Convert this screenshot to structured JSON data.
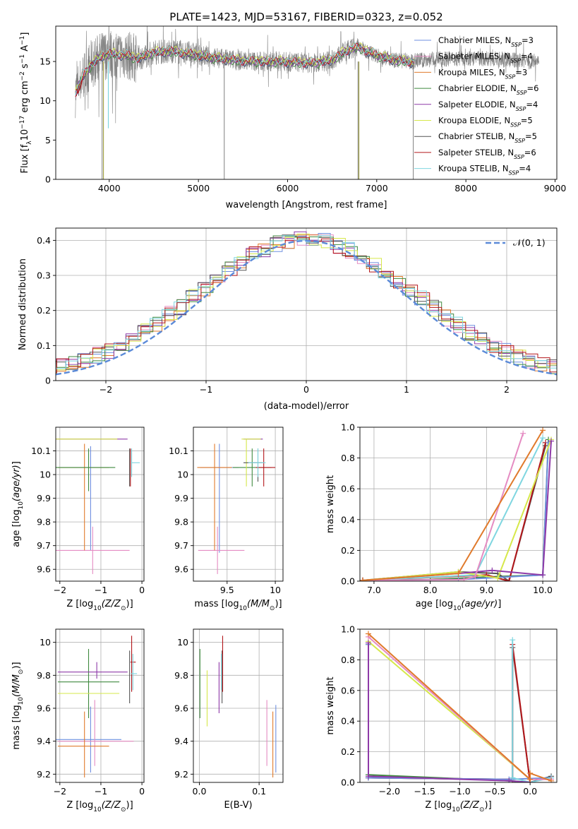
{
  "title": "PLATE=1423, MJD=53167, FIBERID=0323, z=0.052",
  "colors": {
    "Chabrier MILES": "#6f8fe0",
    "Salpeter MILES": "#e58bc2",
    "Kroupa MILES": "#e07a2b",
    "Chabrier ELODIE": "#3f8a3f",
    "Salpeter ELODIE": "#8e3aa8",
    "Kroupa ELODIE": "#d6e84a",
    "Chabrier STELIB": "#555555",
    "Salpeter STELIB": "#b3161a",
    "Kroupa STELIB": "#7fd6e0",
    "data_gray": "#808080",
    "normal_curve": "#5b8ad8"
  },
  "chart_data": [
    {
      "type": "line",
      "panel": "spectrum",
      "xlabel": "wavelength [Angstrom, rest frame]",
      "ylabel": "Flux [f_λ 10^-17 erg cm^-2 s^-1 A^-1]",
      "xlim": [
        3400,
        9020
      ],
      "ylim": [
        0,
        19.5
      ],
      "xticks": [
        4000,
        5000,
        6000,
        7000,
        8000,
        9000
      ],
      "yticks": [
        0,
        5,
        10,
        15
      ],
      "legend_position": "top-right",
      "legend": [
        {
          "name": "Chabrier MILES",
          "sub": "SSP",
          "n": "=3"
        },
        {
          "name": "Salpeter MILES",
          "sub": "SSP",
          "n": "=4"
        },
        {
          "name": "Kroupa MILES",
          "sub": "SSP",
          "n": "=3"
        },
        {
          "name": "Chabrier ELODIE",
          "sub": "SSP",
          "n": "=6"
        },
        {
          "name": "Salpeter ELODIE",
          "sub": "SSP",
          "n": "=4"
        },
        {
          "name": "Kroupa ELODIE",
          "sub": "SSP",
          "n": "=5"
        },
        {
          "name": "Chabrier STELIB",
          "sub": "SSP",
          "n": "=5"
        },
        {
          "name": "Salpeter STELIB",
          "sub": "SSP",
          "n": "=6"
        },
        {
          "name": "Kroupa STELIB",
          "sub": "SSP",
          "n": "=4"
        }
      ],
      "continuum": {
        "x": [
          3620,
          3700,
          3800,
          3900,
          4000,
          4100,
          4200,
          4300,
          4400,
          4500,
          4700,
          4900,
          5100,
          5300,
          5500,
          5700,
          5900,
          6100,
          6300,
          6500,
          6600,
          6700,
          6800,
          7000,
          7200,
          7420
        ],
        "y": [
          11.0,
          13.0,
          14.6,
          15.6,
          16.0,
          15.9,
          15.8,
          15.4,
          15.7,
          16.2,
          16.3,
          16.0,
          15.6,
          15.3,
          15.1,
          15.0,
          15.0,
          14.9,
          14.8,
          15.2,
          16.0,
          16.6,
          16.8,
          15.8,
          15.2,
          14.9
        ]
      },
      "dips_gray": [
        {
          "x": 3920,
          "y": 0
        },
        {
          "x": 5290,
          "y": 0
        },
        {
          "x": 6790,
          "y": 0
        },
        {
          "x": 7410,
          "y": 0
        }
      ],
      "dips_olive": [
        {
          "x": 3935,
          "y": 0
        },
        {
          "x": 6800,
          "y": 0
        }
      ],
      "dip_cyan": {
        "x": 3990,
        "y": 6.5
      },
      "red_tail": {
        "x": [
          3630,
          3650,
          3680,
          3700
        ],
        "y": [
          11.5,
          11.0,
          11.8,
          12.8
        ]
      }
    },
    {
      "type": "line",
      "panel": "residual-histogram",
      "xlabel": "(data-model)/error",
      "ylabel": "Normed distribution",
      "xlim": [
        -2.5,
        2.5
      ],
      "ylim": [
        0,
        0.435
      ],
      "xticks": [
        -2,
        -1,
        0,
        1,
        2
      ],
      "yticks": [
        0.0,
        0.1,
        0.2,
        0.3,
        0.4
      ],
      "grid": true,
      "legend": "𝒩(0, 1)",
      "legend_position": "top-right",
      "normal_curve": {
        "mean": 0,
        "sigma": 1
      }
    },
    {
      "type": "scatter",
      "panel": "age-vs-Z",
      "xlabel": "Z [log10(Z/Z☉)]",
      "ylabel": "age [log10(age/yr)]",
      "xlim": [
        -2.1,
        0.05
      ],
      "ylim": [
        9.55,
        10.2
      ],
      "xticks": [
        -2,
        -1,
        0
      ],
      "yticks": [
        9.6,
        9.7,
        9.8,
        9.9,
        10.0,
        10.1
      ],
      "grid": true,
      "points": [
        {
          "model": "Chabrier MILES",
          "x": -1.25,
          "y": 10.04,
          "xerr": [
            0,
            0
          ],
          "yerr": [
            0.36,
            0.08
          ]
        },
        {
          "model": "Salpeter MILES",
          "x": -1.2,
          "y": 9.68,
          "xerr": [
            0.9,
            0.9
          ],
          "yerr": [
            0.1,
            0.1
          ]
        },
        {
          "model": "Kroupa MILES",
          "x": -1.4,
          "y": 10.03,
          "xerr": [
            0.65,
            0.6
          ],
          "yerr": [
            0.35,
            0.1
          ]
        },
        {
          "model": "Chabrier ELODIE",
          "x": -1.3,
          "y": 10.03,
          "xerr": [
            0.8,
            0.65
          ],
          "yerr": [
            0.1,
            0.08
          ]
        },
        {
          "model": "Salpeter ELODIE",
          "x": -1.1,
          "y": 10.15,
          "xerr": [
            1.0,
            0.75
          ],
          "yerr": [
            0,
            0
          ]
        },
        {
          "model": "Kroupa ELODIE",
          "x": -1.3,
          "y": 10.15,
          "xerr": [
            0.8,
            0.7
          ],
          "yerr": [
            0,
            0
          ]
        },
        {
          "model": "Chabrier STELIB",
          "x": -0.3,
          "y": 10.03,
          "xerr": [
            0,
            0
          ],
          "yerr": [
            0.08,
            0.08
          ]
        },
        {
          "model": "Salpeter STELIB",
          "x": -0.28,
          "y": 10.03,
          "xerr": [
            0,
            0
          ],
          "yerr": [
            0.08,
            0.08
          ]
        },
        {
          "model": "Kroupa STELIB",
          "x": -0.25,
          "y": 10.05,
          "xerr": [
            0,
            0.2
          ],
          "yerr": [
            0.06,
            0.06
          ]
        }
      ]
    },
    {
      "type": "scatter",
      "panel": "age-vs-mass",
      "xlabel": "mass [log10(M/M☉)]",
      "ylabel": "",
      "xlim": [
        9.15,
        10.08
      ],
      "ylim": [
        9.55,
        10.2
      ],
      "xticks": [
        9.5,
        10.0
      ],
      "yticks": [
        9.6,
        9.7,
        9.8,
        9.9,
        10.0,
        10.1
      ],
      "grid": true,
      "points": [
        {
          "model": "Chabrier MILES",
          "x": 9.42,
          "y": 10.03,
          "xerr": [
            0.2,
            0.2
          ],
          "yerr": [
            0.36,
            0.1
          ]
        },
        {
          "model": "Salpeter MILES",
          "x": 9.4,
          "y": 9.68,
          "xerr": [
            0.2,
            0.28
          ],
          "yerr": [
            0.1,
            0.1
          ]
        },
        {
          "model": "Kroupa MILES",
          "x": 9.37,
          "y": 10.03,
          "xerr": [
            0.18,
            0.18
          ],
          "yerr": [
            0.35,
            0.1
          ]
        },
        {
          "model": "Chabrier ELODIE",
          "x": 9.76,
          "y": 10.03,
          "xerr": [
            0.2,
            0.2
          ],
          "yerr": [
            0.08,
            0.08
          ]
        },
        {
          "model": "Salpeter ELODIE",
          "x": 9.82,
          "y": 10.15,
          "xerr": [
            0.15,
            0.05
          ],
          "yerr": [
            0,
            0
          ]
        },
        {
          "model": "Kroupa ELODIE",
          "x": 9.7,
          "y": 10.15,
          "xerr": [
            0.05,
            0.15
          ],
          "yerr": [
            0.2,
            0
          ]
        },
        {
          "model": "Chabrier STELIB",
          "x": 9.82,
          "y": 10.05,
          "xerr": [
            0.15,
            0.05
          ],
          "yerr": [
            0.08,
            0.06
          ]
        },
        {
          "model": "Salpeter STELIB",
          "x": 9.88,
          "y": 10.03,
          "xerr": [
            0.08,
            0.12
          ],
          "yerr": [
            0.08,
            0.08
          ]
        },
        {
          "model": "Kroupa STELIB",
          "x": 9.82,
          "y": 10.05,
          "xerr": [
            0.1,
            0.08
          ],
          "yerr": [
            0.06,
            0.06
          ]
        }
      ]
    },
    {
      "type": "line",
      "panel": "mass-weight-vs-age",
      "xlabel": "age [log10(age/yr)]",
      "ylabel": "mass weight",
      "xlim": [
        6.75,
        10.25
      ],
      "ylim": [
        0,
        1.0
      ],
      "xticks": [
        7,
        8,
        9,
        10
      ],
      "yticks": [
        0.0,
        0.2,
        0.4,
        0.6,
        0.8,
        1.0
      ],
      "grid": true,
      "series": [
        {
          "model": "Chabrier MILES",
          "x": [
            6.8,
            8.5,
            9.0,
            10.0,
            10.1
          ],
          "y": [
            0.005,
            0.01,
            0.02,
            0.04,
            0.9
          ]
        },
        {
          "model": "Salpeter MILES",
          "x": [
            6.8,
            8.6,
            8.8,
            9.65
          ],
          "y": [
            0.005,
            0.01,
            0.03,
            0.96
          ]
        },
        {
          "model": "Kroupa MILES",
          "x": [
            6.8,
            8.5,
            10.0
          ],
          "y": [
            0.005,
            0.05,
            0.98
          ]
        },
        {
          "model": "Chabrier ELODIE",
          "x": [
            6.8,
            8.0,
            9.2,
            10.0,
            10.1
          ],
          "y": [
            0.005,
            0.01,
            0.03,
            0.04,
            0.92
          ]
        },
        {
          "model": "Salpeter ELODIE",
          "x": [
            6.8,
            8.5,
            9.1,
            10.0,
            10.15
          ],
          "y": [
            0.005,
            0.05,
            0.07,
            0.04,
            0.91
          ]
        },
        {
          "model": "Kroupa ELODIE",
          "x": [
            6.8,
            8.5,
            9.2,
            10.15
          ],
          "y": [
            0.005,
            0.06,
            0.02,
            0.92
          ]
        },
        {
          "model": "Chabrier STELIB",
          "x": [
            6.8,
            8.5,
            9.2,
            9.4,
            10.05
          ],
          "y": [
            0.005,
            0.06,
            0.05,
            0.0,
            0.88
          ]
        },
        {
          "model": "Salpeter STELIB",
          "x": [
            6.8,
            9.0,
            9.4,
            10.05
          ],
          "y": [
            0.005,
            0.04,
            0.0,
            0.9
          ]
        },
        {
          "model": "Kroupa STELIB",
          "x": [
            6.8,
            8.8,
            10.0
          ],
          "y": [
            0.005,
            0.04,
            0.93
          ]
        }
      ]
    },
    {
      "type": "scatter",
      "panel": "mass-vs-Z",
      "xlabel": "Z [log10(Z/Z☉)]",
      "ylabel": "mass [log10(M/M☉)]",
      "xlim": [
        -2.1,
        0.05
      ],
      "ylim": [
        9.15,
        10.08
      ],
      "xticks": [
        -2,
        -1,
        0
      ],
      "yticks": [
        9.2,
        9.4,
        9.6,
        9.8,
        10.0
      ],
      "grid": true,
      "points": [
        {
          "model": "Chabrier MILES",
          "x": -1.25,
          "y": 9.41,
          "xerr": [
            0.85,
            0.75
          ],
          "yerr": [
            0.2,
            0.2
          ]
        },
        {
          "model": "Salpeter MILES",
          "x": -1.15,
          "y": 9.4,
          "xerr": [
            0.9,
            0.95
          ],
          "yerr": [
            0.15,
            0.25
          ]
        },
        {
          "model": "Kroupa MILES",
          "x": -1.4,
          "y": 9.37,
          "xerr": [
            0.65,
            0.6
          ],
          "yerr": [
            0.19,
            0.21
          ]
        },
        {
          "model": "Chabrier ELODIE",
          "x": -1.3,
          "y": 9.76,
          "xerr": [
            0.75,
            0.75
          ],
          "yerr": [
            0.22,
            0.2
          ]
        },
        {
          "model": "Salpeter ELODIE",
          "x": -1.1,
          "y": 9.82,
          "xerr": [
            0.95,
            0.75
          ],
          "yerr": [
            0.04,
            0.06
          ]
        },
        {
          "model": "Kroupa ELODIE",
          "x": -1.3,
          "y": 9.69,
          "xerr": [
            0.75,
            0.75
          ],
          "yerr": [
            0,
            0
          ]
        },
        {
          "model": "Chabrier STELIB",
          "x": -0.3,
          "y": 9.82,
          "xerr": [
            0,
            0
          ],
          "yerr": [
            0.19,
            0.13
          ]
        },
        {
          "model": "Salpeter STELIB",
          "x": -0.25,
          "y": 9.88,
          "xerr": [
            0.03,
            0.1
          ],
          "yerr": [
            0.18,
            0.16
          ]
        },
        {
          "model": "Kroupa STELIB",
          "x": -0.22,
          "y": 9.81,
          "xerr": [
            0.05,
            0.1
          ],
          "yerr": [
            0.1,
            0.12
          ]
        }
      ]
    },
    {
      "type": "scatter",
      "panel": "mass-vs-EBV",
      "xlabel": "E(B-V)",
      "ylabel": "",
      "xlim": [
        -0.01,
        0.14
      ],
      "ylim": [
        9.15,
        10.08
      ],
      "xticks": [
        0.0,
        0.1
      ],
      "yticks": [
        9.2,
        9.4,
        9.6,
        9.8,
        10.0
      ],
      "grid": true,
      "points": [
        {
          "model": "Chabrier MILES",
          "x": 0.128,
          "y": 9.41,
          "xerr": [
            0,
            0
          ],
          "yerr": [
            0.2,
            0.21
          ]
        },
        {
          "model": "Salpeter MILES",
          "x": 0.113,
          "y": 9.45,
          "xerr": [
            0,
            0
          ],
          "yerr": [
            0.2,
            0.2
          ]
        },
        {
          "model": "Kroupa MILES",
          "x": 0.123,
          "y": 9.37,
          "xerr": [
            0,
            0
          ],
          "yerr": [
            0.19,
            0.21
          ]
        },
        {
          "model": "Chabrier ELODIE",
          "x": 0.001,
          "y": 9.76,
          "xerr": [
            0,
            0
          ],
          "yerr": [
            0.22,
            0.2
          ]
        },
        {
          "model": "Salpeter ELODIE",
          "x": 0.033,
          "y": 9.82,
          "xerr": [
            0,
            0
          ],
          "yerr": [
            0.25,
            0.06
          ]
        },
        {
          "model": "Kroupa ELODIE",
          "x": 0.013,
          "y": 9.69,
          "xerr": [
            0,
            0
          ],
          "yerr": [
            0.2,
            0.14
          ]
        },
        {
          "model": "Chabrier STELIB",
          "x": 0.038,
          "y": 9.82,
          "xerr": [
            0,
            0
          ],
          "yerr": [
            0.19,
            0.13
          ]
        },
        {
          "model": "Salpeter STELIB",
          "x": 0.039,
          "y": 9.88,
          "xerr": [
            0,
            0
          ],
          "yerr": [
            0.18,
            0.16
          ]
        },
        {
          "model": "Kroupa STELIB",
          "x": 0.037,
          "y": 9.81,
          "xerr": [
            0,
            0
          ],
          "yerr": [
            0.1,
            0.12
          ]
        }
      ]
    },
    {
      "type": "line",
      "panel": "mass-weight-vs-Z",
      "xlabel": "Z [log10(Z/Z☉)]",
      "ylabel": "mass weight",
      "xlim": [
        -2.42,
        0.38
      ],
      "ylim": [
        0,
        1.0
      ],
      "xticks": [
        -2.0,
        -1.5,
        -1.0,
        -0.5,
        0.0
      ],
      "yticks": [
        0.0,
        0.2,
        0.4,
        0.6,
        0.8,
        1.0
      ],
      "grid": true,
      "series": [
        {
          "model": "Chabrier MILES",
          "x": [
            -2.3,
            -2.3,
            -0.3,
            0.3
          ],
          "y": [
            0.9,
            0.03,
            0.02,
            0.03
          ]
        },
        {
          "model": "Salpeter MILES",
          "x": [
            -2.3,
            0.0,
            0.3
          ],
          "y": [
            0.95,
            0.02,
            0.02
          ]
        },
        {
          "model": "Kroupa MILES",
          "x": [
            -2.3,
            0.0,
            0.0,
            0.3
          ],
          "y": [
            0.97,
            0.02,
            0.06,
            0.01
          ]
        },
        {
          "model": "Chabrier ELODIE",
          "x": [
            -2.3,
            -2.3,
            -0.3,
            0.0
          ],
          "y": [
            0.9,
            0.05,
            0.01,
            0.0
          ]
        },
        {
          "model": "Salpeter ELODIE",
          "x": [
            -2.3,
            -2.3,
            -0.3,
            0.0
          ],
          "y": [
            0.91,
            0.04,
            0.01,
            0.0
          ]
        },
        {
          "model": "Kroupa ELODIE",
          "x": [
            -2.3,
            0.0
          ],
          "y": [
            0.92,
            0.02
          ]
        },
        {
          "model": "Chabrier STELIB",
          "x": [
            -2.3,
            -0.25,
            -0.25,
            0.0,
            0.3
          ],
          "y": [
            0.03,
            0.02,
            0.88,
            0.0,
            0.04
          ]
        },
        {
          "model": "Salpeter STELIB",
          "x": [
            -2.3,
            -0.25,
            -0.25,
            0.0
          ],
          "y": [
            0.03,
            0.02,
            0.9,
            0.0
          ]
        },
        {
          "model": "Kroupa STELIB",
          "x": [
            -0.25,
            -0.25,
            0.0,
            0.3
          ],
          "y": [
            0.93,
            0.03,
            0.0,
            0.03
          ]
        }
      ]
    }
  ]
}
